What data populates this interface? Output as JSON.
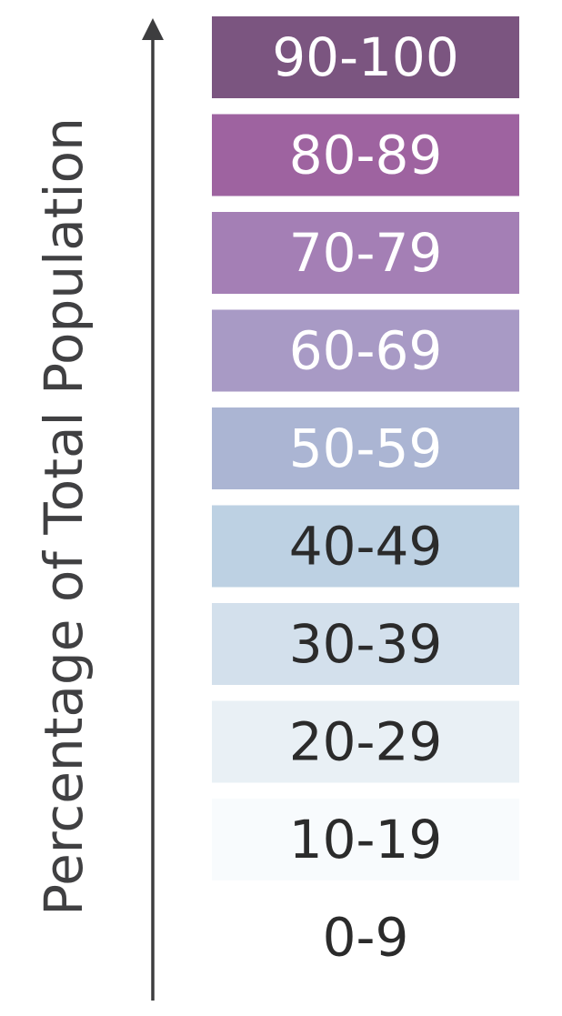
{
  "chart_data": {
    "type": "table",
    "ylabel": "Percentage of Total Population",
    "bands": [
      {
        "label": "90-100",
        "color": "#7b5580",
        "text_color": "#ffffff"
      },
      {
        "label": "80-89",
        "color": "#9e63a0",
        "text_color": "#ffffff"
      },
      {
        "label": "70-79",
        "color": "#a47fb5",
        "text_color": "#ffffff"
      },
      {
        "label": "60-69",
        "color": "#a89ac5",
        "text_color": "#ffffff"
      },
      {
        "label": "50-59",
        "color": "#abb5d3",
        "text_color": "#ffffff"
      },
      {
        "label": "40-49",
        "color": "#bdd1e3",
        "text_color": "#2b2b2b"
      },
      {
        "label": "30-39",
        "color": "#d3e0ec",
        "text_color": "#2b2b2b"
      },
      {
        "label": "20-29",
        "color": "#e9f0f5",
        "text_color": "#2b2b2b"
      },
      {
        "label": "10-19",
        "color": "#f8fbfd",
        "text_color": "#2b2b2b"
      },
      {
        "label": "0-9",
        "color": "#ffffff",
        "text_color": "#2b2b2b"
      }
    ]
  },
  "colors": {
    "axis": "#3d3d3f"
  }
}
